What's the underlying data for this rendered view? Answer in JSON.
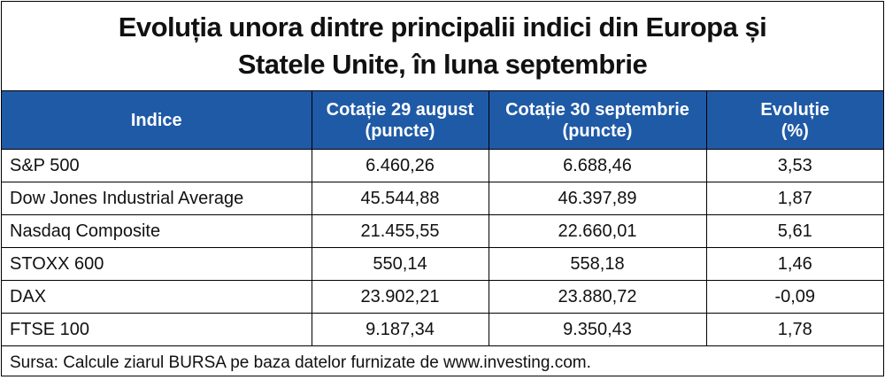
{
  "chart_data": {
    "type": "table",
    "title_lines": [
      "Evoluția unora dintre principalii indici din Europa și",
      "Statele Unite, în luna septembrie"
    ],
    "columns": [
      {
        "lines": [
          "Indice"
        ]
      },
      {
        "lines": [
          "Cotație 29 august",
          "(puncte)"
        ]
      },
      {
        "lines": [
          "Cotație 30 septembrie",
          "(puncte)"
        ]
      },
      {
        "lines": [
          "Evoluție",
          "(%)"
        ]
      }
    ],
    "rows": [
      {
        "index": "S&P 500",
        "aug29": "6.460,26",
        "sep30": "6.688,46",
        "change": "3,53"
      },
      {
        "index": "Dow Jones Industrial Average",
        "aug29": "45.544,88",
        "sep30": "46.397,89",
        "change": "1,87"
      },
      {
        "index": "Nasdaq Composite",
        "aug29": "21.455,55",
        "sep30": "22.660,01",
        "change": "5,61"
      },
      {
        "index": "STOXX 600",
        "aug29": "550,14",
        "sep30": "558,18",
        "change": "1,46"
      },
      {
        "index": "DAX",
        "aug29": "23.902,21",
        "sep30": "23.880,72",
        "change": "-0,09"
      },
      {
        "index": "FTSE 100",
        "aug29": "9.187,34",
        "sep30": "9.350,43",
        "change": "1,78"
      }
    ],
    "source": "Sursa: Calcule ziarul BURSA pe baza datelor furnizate de www.investing.com.",
    "colors": {
      "header_background": "#1f5aa6",
      "header_text": "#ffffff",
      "border": "#000000"
    }
  }
}
